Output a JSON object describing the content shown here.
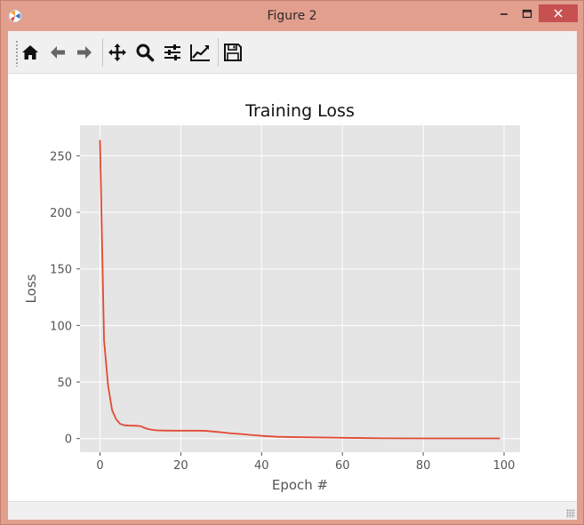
{
  "window": {
    "title": "Figure 2",
    "minimize_label": "—",
    "maximize_label": "☐",
    "close_label": "✕"
  },
  "toolbar": {
    "buttons": [
      {
        "icon": "home-icon"
      },
      {
        "icon": "arrow-left-icon"
      },
      {
        "icon": "arrow-right-icon"
      },
      {
        "icon": "move-icon"
      },
      {
        "icon": "zoom-icon"
      },
      {
        "icon": "sliders-icon"
      },
      {
        "icon": "chart-edit-icon"
      },
      {
        "icon": "save-icon"
      }
    ]
  },
  "colors": {
    "plot_background": "#e5e5e5",
    "grid": "#ffffff",
    "line": "#e24a33",
    "text": "#555555"
  },
  "chart_data": {
    "type": "line",
    "title": "Training Loss",
    "xlabel": "Epoch #",
    "ylabel": "Loss",
    "xlim": [
      -4.95,
      103.95
    ],
    "ylim": [
      -12,
      277
    ],
    "xticks": [
      0,
      20,
      40,
      60,
      80,
      100
    ],
    "yticks": [
      0,
      50,
      100,
      150,
      200,
      250
    ],
    "grid": true,
    "legend": "none",
    "series": [
      {
        "x": [
          0,
          1,
          2,
          3,
          4,
          5,
          6,
          7,
          8,
          9,
          10,
          11,
          12,
          13,
          14,
          15,
          16,
          18,
          20,
          22,
          24,
          26,
          28,
          30,
          32,
          35,
          38,
          41,
          44,
          48,
          52,
          56,
          60,
          64,
          70,
          80,
          90,
          99
        ],
        "values": [
          264,
          87,
          47,
          25,
          17,
          13,
          11.8,
          11.5,
          11.4,
          11.3,
          11,
          9.5,
          8.3,
          7.7,
          7.3,
          7.2,
          7.1,
          7.0,
          7.0,
          7.0,
          7.0,
          6.9,
          6.2,
          5.6,
          4.8,
          4.0,
          3.0,
          2.2,
          1.6,
          1.3,
          1.1,
          0.9,
          0.7,
          0.5,
          0.3,
          0.2,
          0.2,
          0.2
        ]
      }
    ]
  }
}
